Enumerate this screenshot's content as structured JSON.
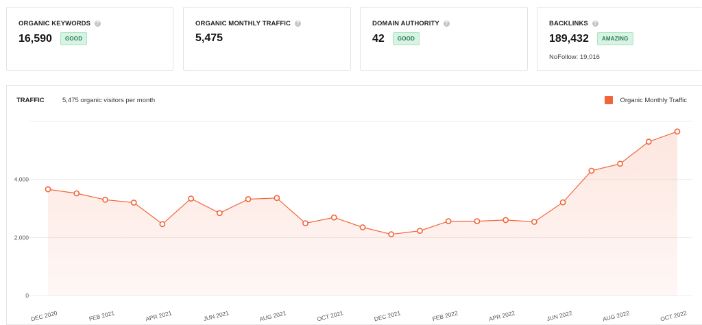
{
  "metrics": [
    {
      "label": "ORGANIC KEYWORDS",
      "value": "16,590",
      "badge": "GOOD",
      "sub": ""
    },
    {
      "label": "ORGANIC MONTHLY TRAFFIC",
      "value": "5,475",
      "badge": "",
      "sub": ""
    },
    {
      "label": "DOMAIN AUTHORITY",
      "value": "42",
      "badge": "GOOD",
      "sub": ""
    },
    {
      "label": "BACKLINKS",
      "value": "189,432",
      "badge": "AMAZING",
      "sub": "NoFollow: 19,016"
    }
  ],
  "help_icon": "?",
  "traffic": {
    "title": "TRAFFIC",
    "subtitle": "5,475 organic visitors per month"
  },
  "colors": {
    "line": "#f2643a",
    "badge_bg": "#d7f3e3",
    "badge_text": "#2d7a55"
  },
  "chart_data": {
    "type": "area",
    "title": "",
    "xlabel": "",
    "ylabel": "",
    "ylim": [
      0,
      6000
    ],
    "yticks": [
      0,
      2000,
      4000
    ],
    "ytick_labels": [
      "0",
      "2,000",
      "4,000"
    ],
    "grid": true,
    "legend_position": "top-right",
    "x_tick_labels": [
      "DEC 2020",
      "FEB 2021",
      "APR 2021",
      "JUN 2021",
      "AUG 2021",
      "OCT 2021",
      "DEC 2021",
      "FEB 2022",
      "APR 2022",
      "JUN 2022",
      "AUG 2022",
      "OCT 2022"
    ],
    "series": [
      {
        "name": "Organic Monthly Traffic",
        "values": [
          3660,
          3520,
          3300,
          3200,
          2460,
          3340,
          2840,
          3320,
          3360,
          2490,
          2690,
          2350,
          2110,
          2230,
          2560,
          2560,
          2600,
          2540,
          3210,
          4300,
          4540,
          5300,
          5650
        ]
      }
    ]
  }
}
